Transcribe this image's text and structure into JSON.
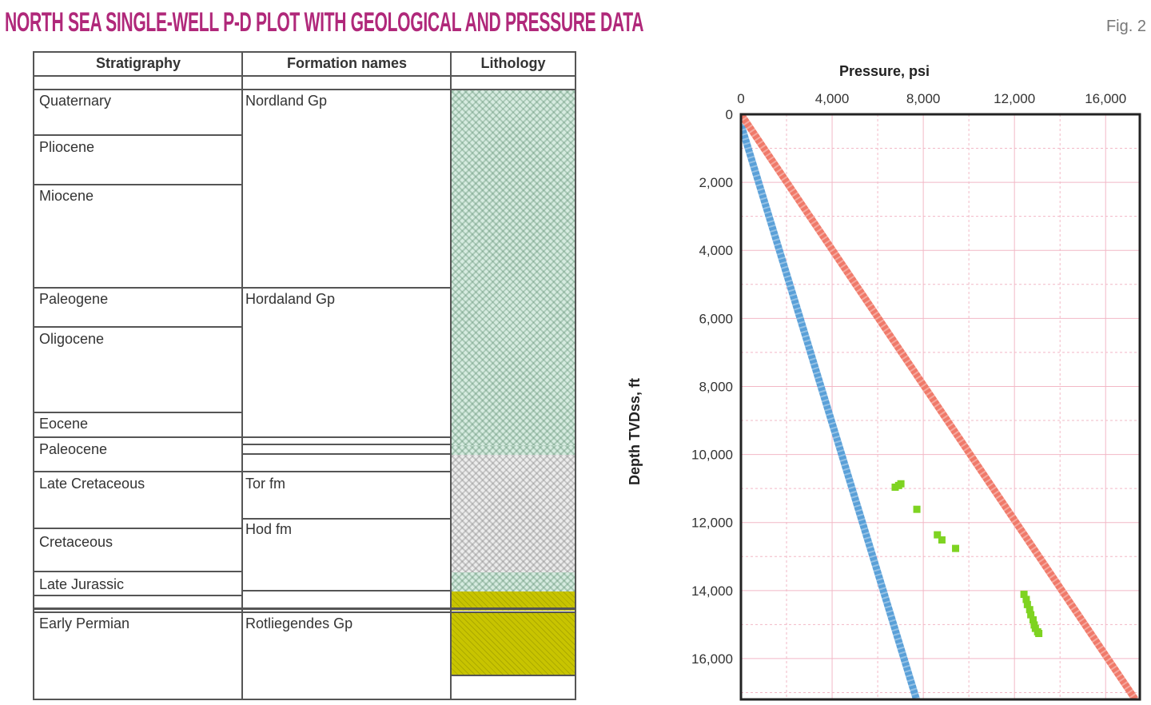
{
  "title": "North sea single-well P-D plot with geological and pressure data",
  "fig_label": "Fig. 2",
  "table": {
    "headers": [
      "Stratigraphy",
      "Formation names",
      "Lithology"
    ],
    "stratigraphy": [
      "Quaternary",
      "Pliocene",
      "Miocene",
      "Paleogene",
      "Oligocene",
      "Eocene",
      "Paleocene",
      "Late Cretaceous",
      "Cretaceous",
      "Late Jurassic",
      "Early Permian"
    ],
    "formations": [
      "Nordland Gp",
      "Hordaland Gp",
      "Tor fm",
      "Hod fm",
      "Rotliegendes Gp"
    ]
  },
  "chart_data": {
    "type": "scatter",
    "xlabel": "Pressure, psi",
    "ylabel": "Depth TVDss, ft",
    "xlim": [
      0,
      17500
    ],
    "ylim": [
      17200,
      0
    ],
    "x_ticks": [
      0,
      4000,
      8000,
      12000,
      16000
    ],
    "x_tick_labels": [
      "0",
      "4,000",
      "8,000",
      "12,000",
      "16,000"
    ],
    "y_ticks": [
      0,
      2000,
      4000,
      6000,
      8000,
      10000,
      12000,
      14000,
      16000
    ],
    "y_tick_labels": [
      "0",
      "2,000",
      "4,000",
      "6,000",
      "8,000",
      "10,000",
      "12,000",
      "14,000",
      "16,000"
    ],
    "grid": true,
    "x_axis_position": "top",
    "series": [
      {
        "type": "line",
        "color": "#5aa0d8",
        "x": [
          0,
          7700
        ],
        "y": [
          300,
          17200
        ]
      },
      {
        "type": "line",
        "color": "#f07a6a",
        "x": [
          0,
          17300
        ],
        "y": [
          0,
          17200
        ]
      },
      {
        "type": "scatter",
        "color": "#7ed321",
        "x": [
          6750,
          6900,
          7000,
          7700,
          8600,
          8800,
          9400,
          12400,
          12500,
          12550,
          12650,
          12700,
          12800,
          12850,
          12900,
          13000,
          13050
        ],
        "y": [
          10950,
          10900,
          10850,
          11600,
          12350,
          12500,
          12750,
          14100,
          14250,
          14400,
          14550,
          14700,
          14850,
          15000,
          15100,
          15200,
          15250
        ]
      }
    ]
  },
  "colors": {
    "title": "#b0287a",
    "shale": "#d6ebe0",
    "chalk": "#ececec",
    "sandstone": "#c8c400",
    "hydrostatic": "#5aa0d8",
    "overburden": "#f07a6a",
    "pressure_points": "#7ed321"
  }
}
